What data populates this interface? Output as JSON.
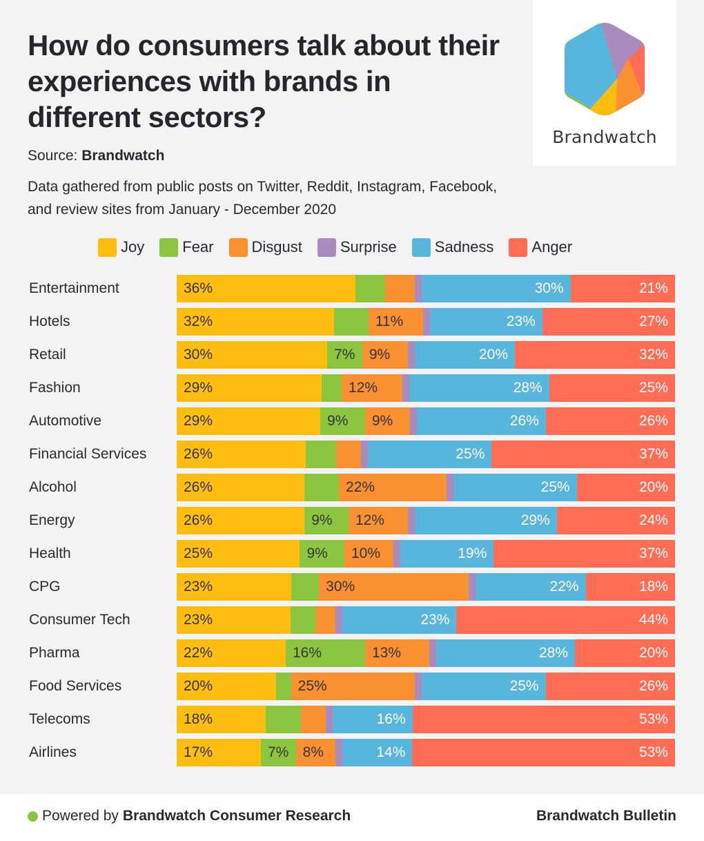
{
  "header": {
    "title": "How do consumers talk about their experiences with brands in different sectors?",
    "source_label": "Source:",
    "source_name": "Brandwatch",
    "description": "Data gathered from public posts on Twitter, Reddit, Instagram, Facebook, and review sites from January - December 2020"
  },
  "logo": {
    "wordmark": "Brandwatch",
    "icon": "brandwatch-hexagon-logo"
  },
  "footer": {
    "powered_prefix": "Powered by",
    "powered_name": "Brandwatch Consumer Research",
    "publisher": "Brandwatch Bulletin",
    "dot_color": "#8bc53f"
  },
  "chart_data": {
    "type": "bar",
    "orientation": "horizontal",
    "stacked": "percent",
    "title": "How do consumers talk about their experiences with brands in different sectors?",
    "xlabel": "",
    "ylabel": "",
    "xlim": [
      0,
      100
    ],
    "grid": false,
    "legend_position": "top",
    "categories": [
      "Entertainment",
      "Hotels",
      "Retail",
      "Fashion",
      "Automotive",
      "Financial Services",
      "Alcohol",
      "Energy",
      "Health",
      "CPG",
      "Consumer Tech",
      "Pharma",
      "Food Services",
      "Telecoms",
      "Airlines"
    ],
    "series": [
      {
        "name": "Joy",
        "color": "#fdbe11",
        "label_style": "dark",
        "values": [
          36,
          32,
          30,
          29,
          29,
          26,
          26,
          26,
          25,
          23,
          23,
          22,
          20,
          18,
          17
        ],
        "labels": [
          "36%",
          "32%",
          "30%",
          "29%",
          "29%",
          "26%",
          "26%",
          "26%",
          "25%",
          "23%",
          "23%",
          "22%",
          "20%",
          "18%",
          "17%"
        ]
      },
      {
        "name": "Fear",
        "color": "#8cc540",
        "label_style": "dark",
        "values": [
          6,
          7,
          7,
          4,
          9,
          6,
          7,
          9,
          9,
          5.5,
          5,
          16,
          3,
          7,
          7
        ],
        "labels": [
          "",
          "",
          "7%",
          "",
          "9%",
          "",
          "",
          "9%",
          "9%",
          "",
          "",
          "16%",
          "",
          "",
          "7%"
        ]
      },
      {
        "name": "Disgust",
        "color": "#f99132",
        "label_style": "dark",
        "values": [
          6,
          11,
          9,
          12,
          9,
          5,
          22,
          12,
          10,
          30,
          4,
          13,
          25,
          5,
          8
        ],
        "labels": [
          "",
          "11%",
          "9%",
          "12%",
          "9%",
          "",
          "22%",
          "12%",
          "10%",
          "30%",
          "",
          "13%",
          "25%",
          "",
          "8%"
        ]
      },
      {
        "name": "Surprise",
        "color": "#a98bbd",
        "label_style": "dark",
        "values": [
          1,
          1,
          1,
          1,
          1,
          0.5,
          1,
          1,
          0.5,
          1,
          1,
          1.4,
          0.5,
          1,
          0.5
        ],
        "labels": [
          "",
          "",
          "",
          "",
          "",
          "",
          "",
          "",
          "",
          "",
          "",
          "",
          "",
          "",
          ""
        ]
      },
      {
        "name": "Sadness",
        "color": "#58b6dd",
        "label_style": "light",
        "values": [
          30,
          23,
          20,
          28,
          26,
          25,
          25,
          29,
          19,
          22,
          23,
          28,
          25,
          16,
          14
        ],
        "labels": [
          "30%",
          "23%",
          "20%",
          "28%",
          "26%",
          "25%",
          "25%",
          "29%",
          "19%",
          "22%",
          "23%",
          "28%",
          "25%",
          "16%",
          "14%"
        ]
      },
      {
        "name": "Anger",
        "color": "#ff6d55",
        "label_style": "light",
        "values": [
          21,
          27,
          32,
          25,
          26,
          37,
          20,
          24,
          37,
          18,
          44,
          20,
          26,
          53,
          53
        ],
        "labels": [
          "21%",
          "27%",
          "32%",
          "25%",
          "26%",
          "37%",
          "20%",
          "24%",
          "37%",
          "18%",
          "44%",
          "20%",
          "26%",
          "53%",
          "53%"
        ]
      }
    ]
  }
}
